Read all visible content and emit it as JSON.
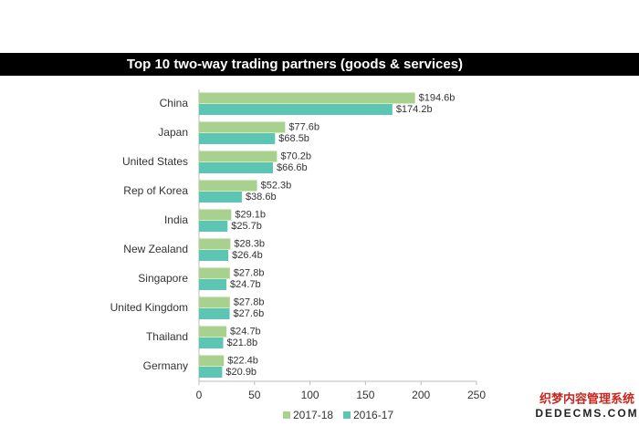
{
  "chart_data": {
    "type": "bar",
    "orientation": "horizontal",
    "title": "Top 10 two-way trading partners (goods & services)",
    "categories": [
      "China",
      "Japan",
      "United States",
      "Rep of Korea",
      "India",
      "New Zealand",
      "Singapore",
      "United Kingdom",
      "Thailand",
      "Germany"
    ],
    "series": [
      {
        "name": "2017-18",
        "color": "#a9d18e",
        "values": [
          194.6,
          77.6,
          70.2,
          52.3,
          29.1,
          28.3,
          27.8,
          27.8,
          24.7,
          22.4
        ],
        "value_labels": [
          "$194.6b",
          "$77.6b",
          "$70.2b",
          "$52.3b",
          "$29.1b",
          "$28.3b",
          "$27.8b",
          "$27.8b",
          "$24.7b",
          "$22.4b"
        ]
      },
      {
        "name": "2016-17",
        "color": "#5cc6b3",
        "values": [
          174.2,
          68.5,
          66.6,
          38.6,
          25.7,
          26.4,
          24.7,
          27.6,
          21.8,
          20.9
        ],
        "value_labels": [
          "$174.2b",
          "$68.5b",
          "$66.6b",
          "$38.6b",
          "$25.7b",
          "$26.4b",
          "$24.7b",
          "$27.6b",
          "$21.8b",
          "$20.9b"
        ]
      }
    ],
    "xlim": [
      0,
      250
    ],
    "xticks": [
      0,
      50,
      100,
      150,
      200,
      250
    ],
    "grid": false,
    "legend": "bottom"
  },
  "watermark": {
    "line1": "织梦内容管理系统",
    "line2": "DEDECMS.COM"
  }
}
